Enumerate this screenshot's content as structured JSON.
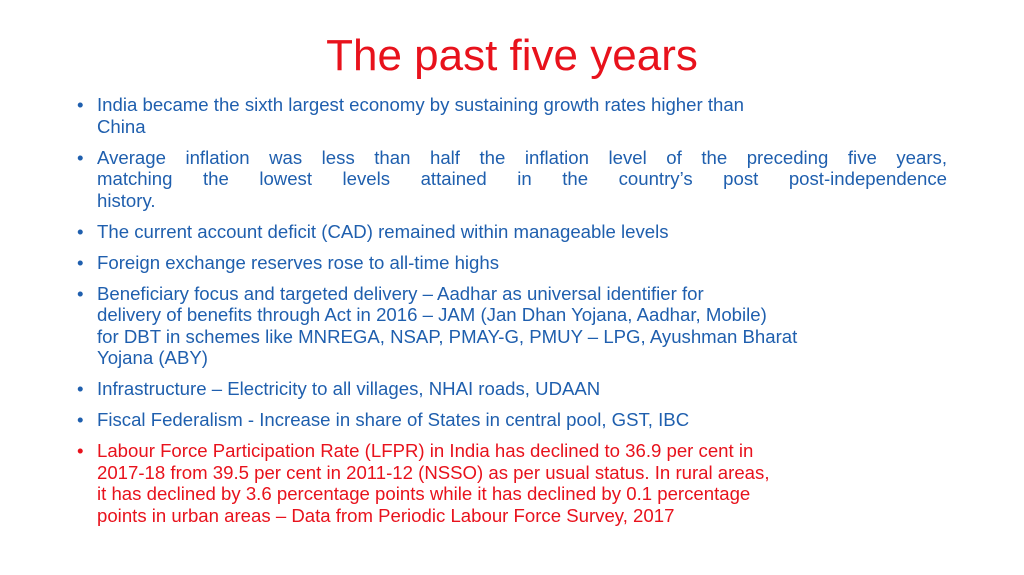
{
  "title": "The past five years",
  "bullets": [
    {
      "color": "#1f5fae",
      "justify": false,
      "lines": [
        "India became the sixth largest economy by sustaining growth rates higher than",
        "China"
      ]
    },
    {
      "color": "#1f5fae",
      "justify": true,
      "lines": [
        "Average inflation was less than half the inflation level of the preceding five years,",
        "matching the lowest levels attained in the country’s post post-independence",
        "history."
      ]
    },
    {
      "color": "#1f5fae",
      "justify": false,
      "lines": [
        "The current account deficit (CAD) remained within manageable levels"
      ]
    },
    {
      "color": "#1f5fae",
      "justify": false,
      "lines": [
        "Foreign exchange reserves rose to all-time highs"
      ]
    },
    {
      "color": "#1f5fae",
      "justify": false,
      "lines": [
        "Beneficiary focus and targeted delivery – Aadhar as universal identifier for",
        "delivery of benefits through Act in 2016 – JAM (Jan Dhan Yojana, Aadhar, Mobile)",
        "for DBT in schemes like MNREGA, NSAP, PMAY-G, PMUY – LPG, Ayushman Bharat",
        "Yojana (ABY)"
      ]
    },
    {
      "color": "#1f5fae",
      "justify": false,
      "lines": [
        "Infrastructure – Electricity to all villages, NHAI roads, UDAAN"
      ]
    },
    {
      "color": "#1f5fae",
      "justify": false,
      "lines": [
        "Fiscal Federalism - Increase in share of States in central pool, GST, IBC"
      ]
    },
    {
      "color": "#e8121c",
      "justify": false,
      "lines": [
        "Labour Force Participation Rate (LFPR) in India has declined to 36.9 per cent in",
        "2017-18 from 39.5 per cent in 2011-12 (NSSO) as per usual status. In rural areas,",
        "it has declined by 3.6 percentage points while it has declined by 0.1 percentage",
        "points in urban areas – Data from Periodic Labour Force Survey, 2017"
      ]
    }
  ]
}
